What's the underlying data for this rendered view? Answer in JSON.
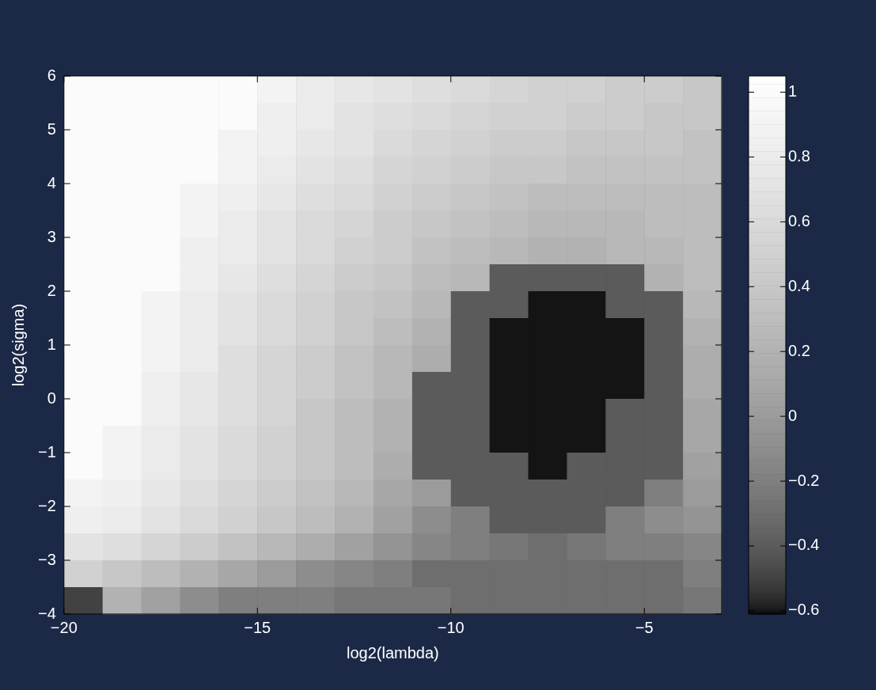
{
  "chart_data": {
    "type": "heatmap",
    "xlabel": "log2(lambda)",
    "ylabel": "log2(sigma)",
    "x": [
      -19.5,
      -18.5,
      -17.5,
      -16.5,
      -15.5,
      -14.5,
      -13.5,
      -12.5,
      -11.5,
      -10.5,
      -9.5,
      -8.5,
      -7.5,
      -6.5,
      -5.5,
      -4.5,
      -3.5
    ],
    "xlim": [
      -20,
      -3
    ],
    "xticks": [
      {
        "value": -20,
        "label": "−20"
      },
      {
        "value": -15,
        "label": "−15"
      },
      {
        "value": -10,
        "label": "−10"
      },
      {
        "value": -5,
        "label": "−5"
      }
    ],
    "ylim": [
      -4,
      6
    ],
    "yticks": [
      {
        "value": -4,
        "label": "−4"
      },
      {
        "value": -3,
        "label": "−3"
      },
      {
        "value": -2,
        "label": "−2"
      },
      {
        "value": -1,
        "label": "−1"
      },
      0,
      1,
      2,
      3,
      4,
      5,
      6
    ],
    "clim": [
      -0.61,
      1.05
    ],
    "cticks": [
      {
        "value": -0.6,
        "label": "−0.6"
      },
      {
        "value": -0.4,
        "label": "−0.4"
      },
      {
        "value": -0.2,
        "label": "−0.2"
      },
      0,
      0.2,
      0.4,
      0.6,
      0.8,
      1
    ],
    "cells": [
      [
        1,
        1,
        1,
        1,
        1,
        0.9,
        0.8,
        0.75,
        0.7,
        0.65,
        0.6,
        0.55,
        0.5,
        0.5,
        0.45,
        0.45,
        0.4
      ],
      [
        1,
        1,
        1,
        1,
        1,
        0.85,
        0.8,
        0.7,
        0.65,
        0.6,
        0.55,
        0.5,
        0.5,
        0.45,
        0.45,
        0.4,
        0.4
      ],
      [
        1,
        1,
        1,
        1,
        0.9,
        0.85,
        0.75,
        0.7,
        0.6,
        0.55,
        0.5,
        0.45,
        0.45,
        0.4,
        0.4,
        0.4,
        0.35
      ],
      [
        1,
        1,
        1,
        1,
        0.9,
        0.8,
        0.7,
        0.65,
        0.55,
        0.5,
        0.45,
        0.4,
        0.4,
        0.35,
        0.35,
        0.35,
        0.35
      ],
      [
        1,
        1,
        1,
        0.9,
        0.85,
        0.75,
        0.65,
        0.6,
        0.5,
        0.45,
        0.4,
        0.35,
        0.3,
        0.3,
        0.3,
        0.3,
        0.3
      ],
      [
        1,
        1,
        1,
        0.9,
        0.8,
        0.7,
        0.6,
        0.55,
        0.45,
        0.4,
        0.35,
        0.3,
        0.25,
        0.25,
        0.25,
        0.3,
        0.3
      ],
      [
        1,
        1,
        1,
        0.85,
        0.8,
        0.7,
        0.6,
        0.5,
        0.45,
        0.35,
        0.3,
        0.25,
        0.2,
        0.2,
        0.25,
        0.25,
        0.3
      ],
      [
        1,
        1,
        1,
        0.85,
        0.75,
        0.65,
        0.55,
        0.45,
        0.4,
        0.3,
        0.25,
        -0.4,
        -0.4,
        -0.4,
        -0.4,
        0.2,
        0.3
      ],
      [
        1,
        1,
        0.9,
        0.8,
        0.7,
        0.6,
        0.5,
        0.4,
        0.35,
        0.25,
        -0.4,
        -0.4,
        -0.6,
        -0.6,
        -0.4,
        -0.4,
        0.25
      ],
      [
        1,
        1,
        0.9,
        0.8,
        0.7,
        0.6,
        0.5,
        0.4,
        0.3,
        0.2,
        -0.4,
        -0.6,
        -0.6,
        -0.6,
        -0.6,
        -0.4,
        0.2
      ],
      [
        1,
        1,
        0.9,
        0.8,
        0.65,
        0.55,
        0.45,
        0.35,
        0.25,
        0.15,
        -0.4,
        -0.6,
        -0.6,
        -0.6,
        -0.6,
        -0.4,
        0.15
      ],
      [
        1,
        1,
        0.85,
        0.75,
        0.65,
        0.55,
        0.45,
        0.35,
        0.25,
        -0.4,
        -0.4,
        -0.6,
        -0.6,
        -0.6,
        -0.6,
        -0.4,
        0.15
      ],
      [
        1,
        1,
        0.85,
        0.75,
        0.65,
        0.55,
        0.4,
        0.3,
        0.2,
        -0.4,
        -0.4,
        -0.6,
        -0.6,
        -0.6,
        -0.4,
        -0.4,
        0.1
      ],
      [
        1,
        0.9,
        0.8,
        0.7,
        0.6,
        0.5,
        0.4,
        0.3,
        0.2,
        -0.4,
        -0.4,
        -0.6,
        -0.6,
        -0.6,
        -0.4,
        -0.4,
        0.1
      ],
      [
        1,
        0.9,
        0.8,
        0.7,
        0.6,
        0.5,
        0.4,
        0.3,
        0.15,
        -0.4,
        -0.4,
        -0.4,
        -0.6,
        -0.4,
        -0.4,
        -0.4,
        0.05
      ],
      [
        0.9,
        0.85,
        0.75,
        0.65,
        0.55,
        0.45,
        0.35,
        0.25,
        0.1,
        0,
        -0.4,
        -0.4,
        -0.4,
        -0.4,
        -0.4,
        -0.2,
        0
      ],
      [
        0.85,
        0.8,
        0.7,
        0.6,
        0.5,
        0.4,
        0.3,
        0.2,
        0.05,
        -0.1,
        -0.2,
        -0.4,
        -0.4,
        -0.4,
        -0.2,
        -0.1,
        -0.05
      ],
      [
        0.7,
        0.65,
        0.55,
        0.45,
        0.35,
        0.25,
        0.15,
        0.05,
        -0.05,
        -0.15,
        -0.2,
        -0.25,
        -0.3,
        -0.25,
        -0.2,
        -0.2,
        -0.15
      ],
      [
        0.5,
        0.4,
        0.3,
        0.2,
        0.1,
        0,
        -0.1,
        -0.15,
        -0.2,
        -0.3,
        -0.3,
        -0.3,
        -0.3,
        -0.3,
        -0.3,
        -0.3,
        -0.2
      ],
      [
        -0.5,
        0.2,
        0.05,
        -0.1,
        -0.2,
        -0.2,
        -0.2,
        -0.25,
        -0.25,
        -0.25,
        -0.3,
        -0.3,
        -0.3,
        -0.3,
        -0.3,
        -0.3,
        -0.25
      ]
    ]
  }
}
